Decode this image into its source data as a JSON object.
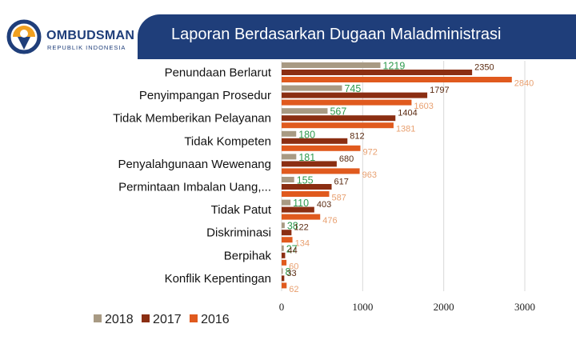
{
  "header": {
    "logo_name": "OMBUDSMAN",
    "logo_sub": "REPUBLIK INDONESIA",
    "title": "Laporan Berdasarkan Dugaan Maladministrasi"
  },
  "colors": {
    "2018": "#a89a83",
    "2017": "#8b2e12",
    "2016": "#e05a1e",
    "label_2018": "#2e9a4e",
    "label_2017": "#5a2a10",
    "label_2016": "#e8a070",
    "header_bg": "#1f3e7a"
  },
  "chart_data": {
    "type": "bar",
    "orientation": "horizontal",
    "title": "Laporan Berdasarkan Dugaan Maladministrasi",
    "categories": [
      "Penundaan Berlarut",
      "Penyimpangan Prosedur",
      "Tidak Memberikan Pelayanan",
      "Tidak Kompeten",
      "Penyalahgunaan Wewenang",
      "Permintaan Imbalan Uang,...",
      "Tidak Patut",
      "Diskriminasi",
      "Berpihak",
      "Konflik Kepentingan"
    ],
    "series": [
      {
        "name": "2018",
        "values": [
          1219,
          745,
          567,
          180,
          181,
          155,
          110,
          38,
          27,
          8
        ]
      },
      {
        "name": "2017",
        "values": [
          2350,
          1797,
          1404,
          812,
          680,
          617,
          403,
          122,
          44,
          33
        ]
      },
      {
        "name": "2016",
        "values": [
          2840,
          1603,
          1381,
          972,
          963,
          587,
          476,
          134,
          60,
          62
        ]
      }
    ],
    "xlim": [
      0,
      3000
    ],
    "xticks": [
      0,
      1000,
      2000,
      3000
    ],
    "xtick_labels": [
      "0",
      "1000",
      "2000",
      "3000"
    ],
    "grid": true,
    "legend_position": "bottom-left"
  }
}
